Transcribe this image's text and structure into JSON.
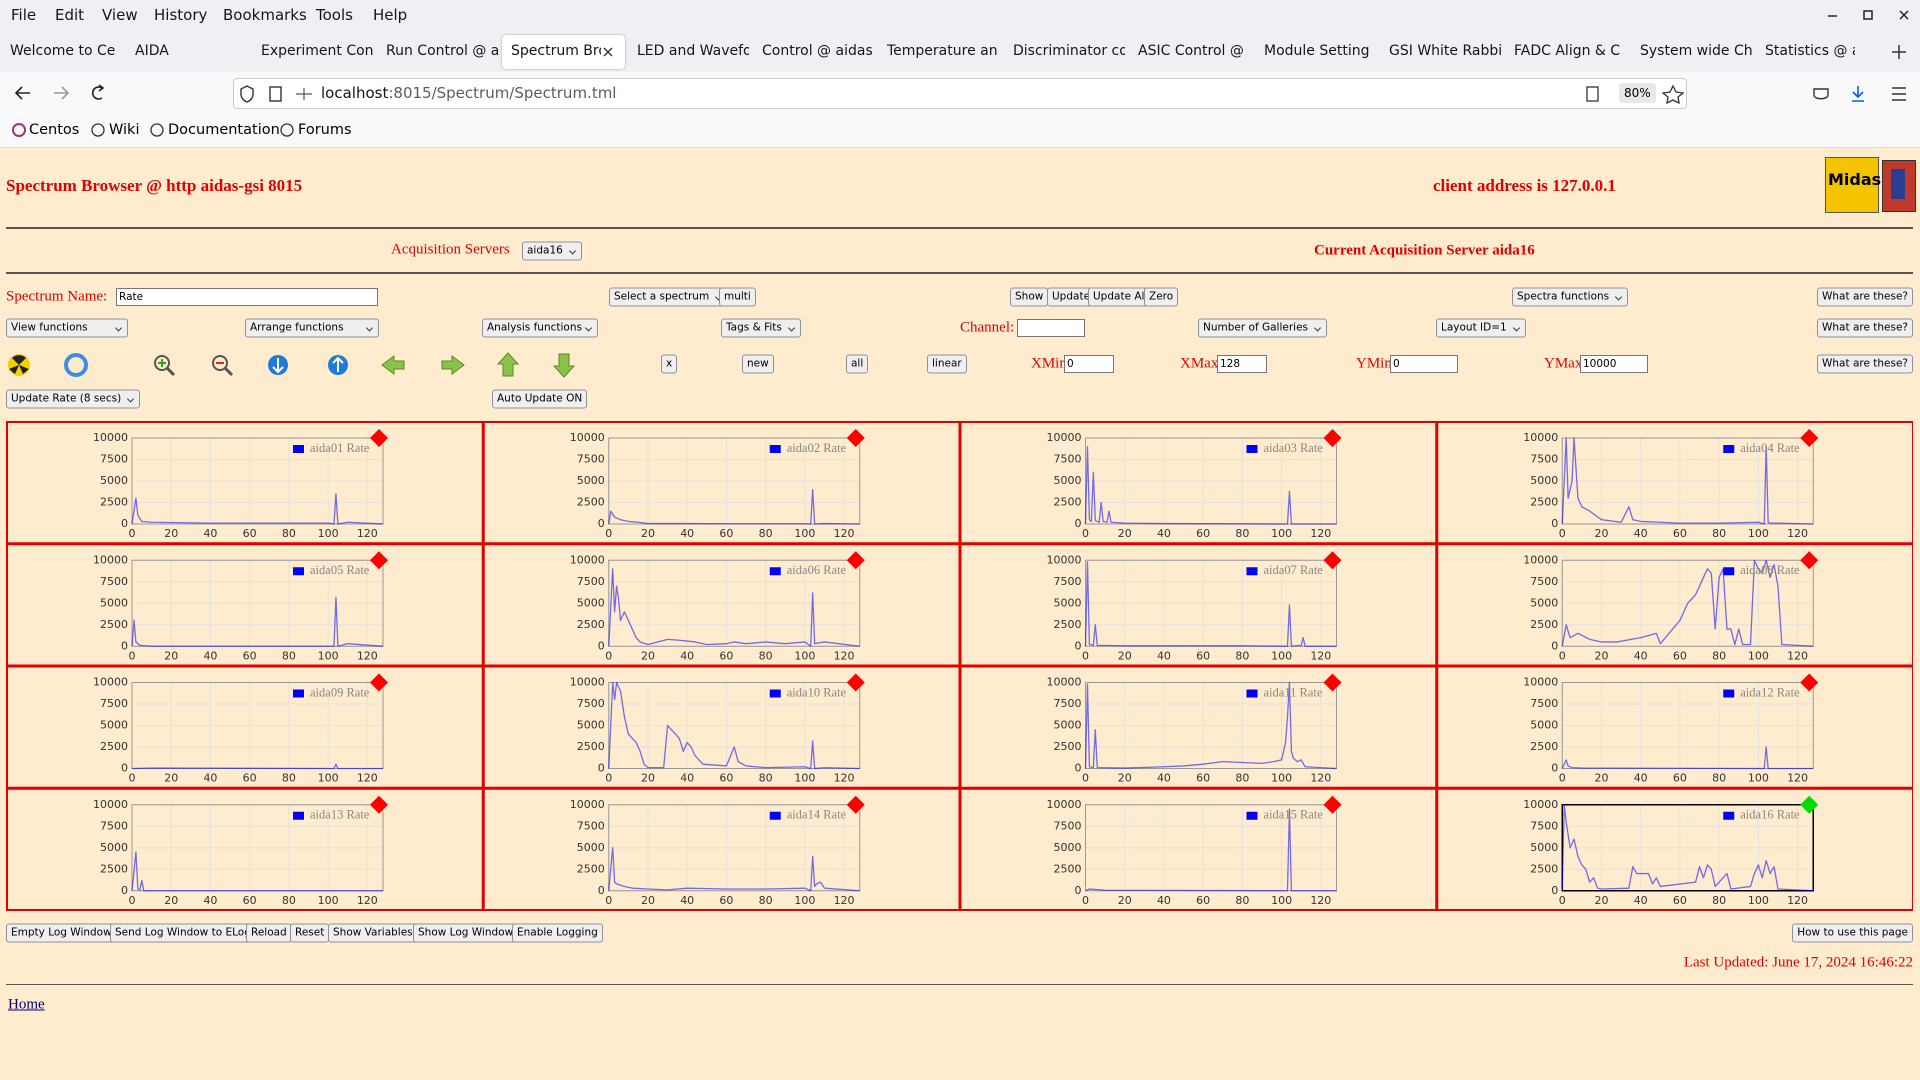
{
  "browser": {
    "menu": [
      "File",
      "Edit",
      "View",
      "History",
      "Bookmarks",
      "Tools",
      "Help"
    ],
    "tabs": [
      "Welcome to Ce",
      "AIDA",
      "Experiment Con",
      "Run Control @ a",
      "Spectrum Bro",
      "LED and Wavefo",
      "Control @ aidas",
      "Temperature an",
      "Discriminator co",
      "ASIC Control @",
      "Module Setting",
      "GSI White Rabbi",
      "FADC Align & C",
      "System wide Ch",
      "Statistics @ aid"
    ],
    "url_host": "localhost",
    "url_rest": ":8015/Spectrum/Spectrum.tml",
    "zoom": "80%",
    "bookmarks": [
      "Centos",
      "Wiki",
      "Documentation",
      "Forums"
    ]
  },
  "page": {
    "title": "Spectrum Browser @ http aidas-gsi 8015",
    "client": "client address is 127.0.0.1",
    "logo": "Midas",
    "acq_label": "Acquisition Servers",
    "acq_server": "aida16",
    "current_server": "Current Acquisition Server aida16",
    "controls": {
      "spectrum_name_label": "Spectrum Name:",
      "spectrum_name": "Rate",
      "select_spectrum": "Select a spectrum",
      "multi": "multi",
      "show": "Show",
      "update": "Update",
      "update_all": "Update All",
      "zero": "Zero",
      "spectra_functions": "Spectra functions",
      "help_buttons": [
        "What are these?",
        "What are these?",
        "What are these?"
      ],
      "view_functions": "View functions",
      "arrange_functions": "Arrange functions",
      "analysis_functions": "Analysis functions",
      "tags_fits": "Tags & Fits",
      "channel_label": "Channel:",
      "number_galleries": "Number of Galleries",
      "layout": "Layout ID=1",
      "x": "x",
      "new": "new",
      "all": "all",
      "linear": "linear",
      "xmin_label": "XMin",
      "xmin": 0,
      "xmax_label": "XMax",
      "xmax": 128,
      "ymin_label": "YMin",
      "ymin": 0,
      "ymax_label": "YMax",
      "ymax": 10000,
      "update_rate": "Update Rate (8 secs)",
      "auto_update": "Auto Update ON"
    },
    "footer": {
      "buttons": [
        "Empty Log Window",
        "Send Log Window to ELog",
        "Reload",
        "Reset",
        "Show Variables",
        "Show Log Window",
        "Enable Logging"
      ],
      "howto": "How to use this page",
      "last_updated": "Last Updated: June 17, 2024 16:46:22",
      "home": "Home"
    }
  },
  "chart_data": [
    {
      "type": "line",
      "x": [
        0,
        2,
        3,
        5,
        10,
        40,
        60,
        80,
        100,
        103,
        104,
        105,
        110,
        128
      ],
      "series": [
        {
          "name": "aida01 Rate",
          "color": "#0000ff",
          "values": [
            0,
            3000,
            1000,
            300,
            200,
            100,
            100,
            100,
            100,
            0,
            3500,
            0,
            200,
            0
          ]
        }
      ],
      "xlim": [
        0,
        128
      ],
      "ylim": [
        0,
        10000
      ],
      "xticks": [
        0,
        20,
        40,
        60,
        80,
        100,
        120
      ],
      "yticks": [
        0,
        2500,
        5000,
        7500,
        10000
      ],
      "grid": true,
      "marker_color": "#ff0000"
    },
    {
      "type": "line",
      "x": [
        0,
        1,
        3,
        6,
        10,
        15,
        20,
        40,
        60,
        80,
        100,
        103,
        104,
        105,
        110,
        128
      ],
      "series": [
        {
          "name": "aida02 Rate",
          "color": "#0000ff",
          "values": [
            0,
            1500,
            800,
            500,
            300,
            200,
            50,
            50,
            30,
            30,
            30,
            0,
            4000,
            0,
            50,
            0
          ]
        }
      ],
      "xlim": [
        0,
        128
      ],
      "ylim": [
        0,
        10000
      ],
      "xticks": [
        0,
        20,
        40,
        60,
        80,
        100,
        120
      ],
      "yticks": [
        0,
        2500,
        5000,
        7500,
        10000
      ],
      "grid": true,
      "marker_color": "#ff0000"
    },
    {
      "type": "line",
      "x": [
        0,
        1,
        2,
        3,
        4,
        5,
        7,
        8,
        9,
        11,
        12,
        13,
        20,
        40,
        103,
        104,
        105,
        128
      ],
      "series": [
        {
          "name": "aida03 Rate",
          "color": "#0000ff",
          "values": [
            0,
            9000,
            500,
            300,
            6000,
            400,
            200,
            2500,
            300,
            200,
            1500,
            200,
            100,
            50,
            0,
            3800,
            0,
            0
          ]
        }
      ],
      "xlim": [
        0,
        128
      ],
      "ylim": [
        0,
        10000
      ],
      "xticks": [
        0,
        20,
        40,
        60,
        80,
        100,
        120
      ],
      "yticks": [
        0,
        2500,
        5000,
        7500,
        10000
      ],
      "grid": true,
      "marker_color": "#ff0000"
    },
    {
      "type": "line",
      "x": [
        0,
        2,
        3,
        5,
        6,
        8,
        10,
        14,
        20,
        30,
        34,
        36,
        40,
        60,
        80,
        100,
        103,
        104,
        105,
        106,
        110,
        128
      ],
      "series": [
        {
          "name": "aida04 Rate",
          "color": "#0000ff",
          "values": [
            0,
            10000,
            3000,
            5000,
            10000,
            3000,
            2000,
            1500,
            500,
            200,
            2000,
            500,
            300,
            100,
            100,
            200,
            0,
            9000,
            200,
            100,
            100,
            0
          ]
        }
      ],
      "xlim": [
        0,
        128
      ],
      "ylim": [
        0,
        10000
      ],
      "xticks": [
        0,
        20,
        40,
        60,
        80,
        100,
        120
      ],
      "yticks": [
        0,
        2500,
        5000,
        7500,
        10000
      ],
      "grid": true,
      "marker_color": "#ff0000"
    },
    {
      "type": "line",
      "x": [
        0,
        1,
        2,
        4,
        10,
        103,
        104,
        105,
        110,
        128
      ],
      "series": [
        {
          "name": "aida05 Rate",
          "color": "#0000ff",
          "values": [
            0,
            3000,
            500,
            100,
            0,
            0,
            5700,
            0,
            300,
            0
          ]
        }
      ],
      "xlim": [
        0,
        128
      ],
      "ylim": [
        0,
        10000
      ],
      "xticks": [
        0,
        20,
        40,
        60,
        80,
        100,
        120
      ],
      "yticks": [
        0,
        2500,
        5000,
        7500,
        10000
      ],
      "grid": true,
      "marker_color": "#ff0000"
    },
    {
      "type": "line",
      "x": [
        0,
        2,
        3,
        4,
        5,
        6,
        8,
        10,
        12,
        14,
        16,
        20,
        30,
        36,
        44,
        50,
        60,
        64,
        70,
        80,
        90,
        100,
        103,
        104,
        105,
        110,
        128
      ],
      "series": [
        {
          "name": "aida06 Rate",
          "color": "#0000ff",
          "values": [
            0,
            9000,
            4000,
            7000,
            5500,
            3000,
            4000,
            3000,
            2000,
            1000,
            500,
            200,
            800,
            700,
            500,
            200,
            300,
            500,
            300,
            500,
            300,
            500,
            0,
            6200,
            300,
            500,
            0
          ]
        }
      ],
      "xlim": [
        0,
        128
      ],
      "ylim": [
        0,
        10000
      ],
      "xticks": [
        0,
        20,
        40,
        60,
        80,
        100,
        120
      ],
      "yticks": [
        0,
        2500,
        5000,
        7500,
        10000
      ],
      "grid": true,
      "marker_color": "#ff0000"
    },
    {
      "type": "line",
      "x": [
        0,
        1,
        2,
        4,
        5,
        6,
        20,
        80,
        103,
        104,
        105,
        110,
        111,
        112,
        128
      ],
      "series": [
        {
          "name": "aida07 Rate",
          "color": "#0000ff",
          "values": [
            0,
            9800,
            200,
            100,
            2500,
            100,
            50,
            50,
            0,
            4800,
            0,
            100,
            1000,
            0,
            0
          ]
        }
      ],
      "xlim": [
        0,
        128
      ],
      "ylim": [
        0,
        10000
      ],
      "xticks": [
        0,
        20,
        40,
        60,
        80,
        100,
        120
      ],
      "yticks": [
        0,
        2500,
        5000,
        7500,
        10000
      ],
      "grid": true,
      "marker_color": "#ff0000"
    },
    {
      "type": "line",
      "x": [
        0,
        2,
        4,
        8,
        14,
        20,
        28,
        40,
        48,
        50,
        60,
        64,
        68,
        70,
        72,
        74,
        76,
        78,
        80,
        82,
        84,
        86,
        88,
        90,
        92,
        96,
        98,
        100,
        102,
        104,
        106,
        108,
        110,
        112,
        128
      ],
      "series": [
        {
          "name": "aida08 Rate",
          "color": "#0000ff",
          "values": [
            0,
            2500,
            1000,
            1500,
            800,
            500,
            500,
            1000,
            1500,
            300,
            3000,
            5000,
            6000,
            7000,
            8000,
            9000,
            8500,
            2000,
            8000,
            9000,
            2000,
            2000,
            200,
            2000,
            200,
            200,
            10000,
            9000,
            8500,
            10000,
            8000,
            9500,
            7000,
            200,
            0
          ]
        }
      ],
      "xlim": [
        0,
        128
      ],
      "ylim": [
        0,
        10000
      ],
      "xticks": [
        0,
        20,
        40,
        60,
        80,
        100,
        120
      ],
      "yticks": [
        0,
        2500,
        5000,
        7500,
        10000
      ],
      "grid": true,
      "marker_color": "#ff0000"
    },
    {
      "type": "line",
      "x": [
        0,
        10,
        103,
        104,
        105,
        128
      ],
      "series": [
        {
          "name": "aida09 Rate",
          "color": "#0000ff",
          "values": [
            0,
            50,
            0,
            500,
            0,
            0
          ]
        }
      ],
      "xlim": [
        0,
        128
      ],
      "ylim": [
        0,
        10000
      ],
      "xticks": [
        0,
        20,
        40,
        60,
        80,
        100,
        120
      ],
      "yticks": [
        0,
        2500,
        5000,
        7500,
        10000
      ],
      "grid": true,
      "marker_color": "#ff0000"
    },
    {
      "type": "line",
      "x": [
        0,
        2,
        3,
        4,
        6,
        8,
        10,
        14,
        16,
        18,
        20,
        28,
        30,
        32,
        34,
        36,
        38,
        40,
        42,
        44,
        48,
        60,
        64,
        66,
        70,
        80,
        100,
        103,
        104,
        105,
        110,
        128
      ],
      "series": [
        {
          "name": "aida10 Rate",
          "color": "#0000ff",
          "values": [
            0,
            10000,
            8000,
            10000,
            9000,
            6000,
            4000,
            3000,
            2000,
            500,
            100,
            100,
            5000,
            4500,
            4000,
            3500,
            2000,
            3000,
            2500,
            1500,
            500,
            300,
            2500,
            800,
            300,
            100,
            200,
            0,
            3200,
            0,
            100,
            0
          ]
        }
      ],
      "xlim": [
        0,
        128
      ],
      "ylim": [
        0,
        10000
      ],
      "xticks": [
        0,
        20,
        40,
        60,
        80,
        100,
        120
      ],
      "yticks": [
        0,
        2500,
        5000,
        7500,
        10000
      ],
      "grid": true,
      "marker_color": "#ff0000"
    },
    {
      "type": "line",
      "x": [
        0,
        1,
        2,
        4,
        5,
        6,
        20,
        40,
        50,
        60,
        70,
        80,
        90,
        96,
        100,
        102,
        103,
        104,
        105,
        106,
        108,
        110,
        112,
        128
      ],
      "series": [
        {
          "name": "aida11 Rate",
          "color": "#0000ff",
          "values": [
            0,
            9800,
            200,
            100,
            4500,
            100,
            50,
            200,
            300,
            500,
            800,
            700,
            600,
            800,
            1000,
            3000,
            6000,
            10000,
            2000,
            1200,
            800,
            1000,
            200,
            0
          ]
        }
      ],
      "xlim": [
        0,
        128
      ],
      "ylim": [
        0,
        10000
      ],
      "xticks": [
        0,
        20,
        40,
        60,
        80,
        100,
        120
      ],
      "yticks": [
        0,
        2500,
        5000,
        7500,
        10000
      ],
      "grid": true,
      "marker_color": "#ff0000"
    },
    {
      "type": "line",
      "x": [
        0,
        2,
        3,
        5,
        10,
        103,
        104,
        105,
        128
      ],
      "series": [
        {
          "name": "aida12 Rate",
          "color": "#0000ff",
          "values": [
            0,
            1000,
            300,
            100,
            50,
            0,
            2500,
            0,
            0
          ]
        }
      ],
      "xlim": [
        0,
        128
      ],
      "ylim": [
        0,
        10000
      ],
      "xticks": [
        0,
        20,
        40,
        60,
        80,
        100,
        120
      ],
      "yticks": [
        0,
        2500,
        5000,
        7500,
        10000
      ],
      "grid": true,
      "marker_color": "#ff0000"
    },
    {
      "type": "line",
      "x": [
        0,
        2,
        3,
        4,
        5,
        6,
        128
      ],
      "series": [
        {
          "name": "aida13 Rate",
          "color": "#0000ff",
          "values": [
            0,
            4500,
            200,
            100,
            1200,
            0,
            0
          ]
        }
      ],
      "xlim": [
        0,
        128
      ],
      "ylim": [
        0,
        10000
      ],
      "xticks": [
        0,
        20,
        40,
        60,
        80,
        100,
        120
      ],
      "yticks": [
        0,
        2500,
        5000,
        7500,
        10000
      ],
      "grid": true,
      "marker_color": "#ff0000"
    },
    {
      "type": "line",
      "x": [
        0,
        2,
        3,
        4,
        8,
        12,
        20,
        30,
        40,
        60,
        80,
        100,
        103,
        104,
        105,
        106,
        108,
        110,
        128
      ],
      "series": [
        {
          "name": "aida14 Rate",
          "color": "#0000ff",
          "values": [
            0,
            5000,
            1000,
            800,
            500,
            300,
            200,
            100,
            300,
            200,
            200,
            300,
            0,
            4000,
            500,
            800,
            1000,
            300,
            0
          ]
        }
      ],
      "xlim": [
        0,
        128
      ],
      "ylim": [
        0,
        10000
      ],
      "xticks": [
        0,
        20,
        40,
        60,
        80,
        100,
        120
      ],
      "yticks": [
        0,
        2500,
        5000,
        7500,
        10000
      ],
      "grid": true,
      "marker_color": "#ff0000"
    },
    {
      "type": "line",
      "x": [
        0,
        2,
        10,
        103,
        104,
        105,
        128
      ],
      "series": [
        {
          "name": "aida15 Rate",
          "color": "#0000ff",
          "values": [
            0,
            200,
            50,
            0,
            9500,
            0,
            0
          ]
        }
      ],
      "xlim": [
        0,
        128
      ],
      "ylim": [
        0,
        10000
      ],
      "xticks": [
        0,
        20,
        40,
        60,
        80,
        100,
        120
      ],
      "yticks": [
        0,
        2500,
        5000,
        7500,
        10000
      ],
      "grid": true,
      "marker_color": "#ff0000"
    },
    {
      "type": "line",
      "x": [
        0,
        1,
        2,
        4,
        6,
        8,
        10,
        12,
        14,
        16,
        18,
        20,
        34,
        36,
        38,
        44,
        46,
        48,
        50,
        68,
        70,
        72,
        74,
        76,
        78,
        84,
        86,
        96,
        98,
        100,
        102,
        104,
        106,
        108,
        110,
        128
      ],
      "series": [
        {
          "name": "aida16 Rate",
          "color": "#0000ff",
          "values": [
            0,
            10000,
            8000,
            5000,
            6000,
            4000,
            3000,
            2500,
            1000,
            1500,
            300,
            200,
            300,
            2800,
            2000,
            2000,
            800,
            1500,
            500,
            1000,
            2800,
            1500,
            3000,
            2500,
            500,
            2000,
            200,
            500,
            2000,
            3000,
            1500,
            3500,
            2000,
            2800,
            200,
            0
          ]
        }
      ],
      "xlim": [
        0,
        128
      ],
      "ylim": [
        0,
        10000
      ],
      "xticks": [
        0,
        20,
        40,
        60,
        80,
        100,
        120
      ],
      "yticks": [
        0,
        2500,
        5000,
        7500,
        10000
      ],
      "grid": true,
      "marker_color": "#00dd00"
    }
  ]
}
